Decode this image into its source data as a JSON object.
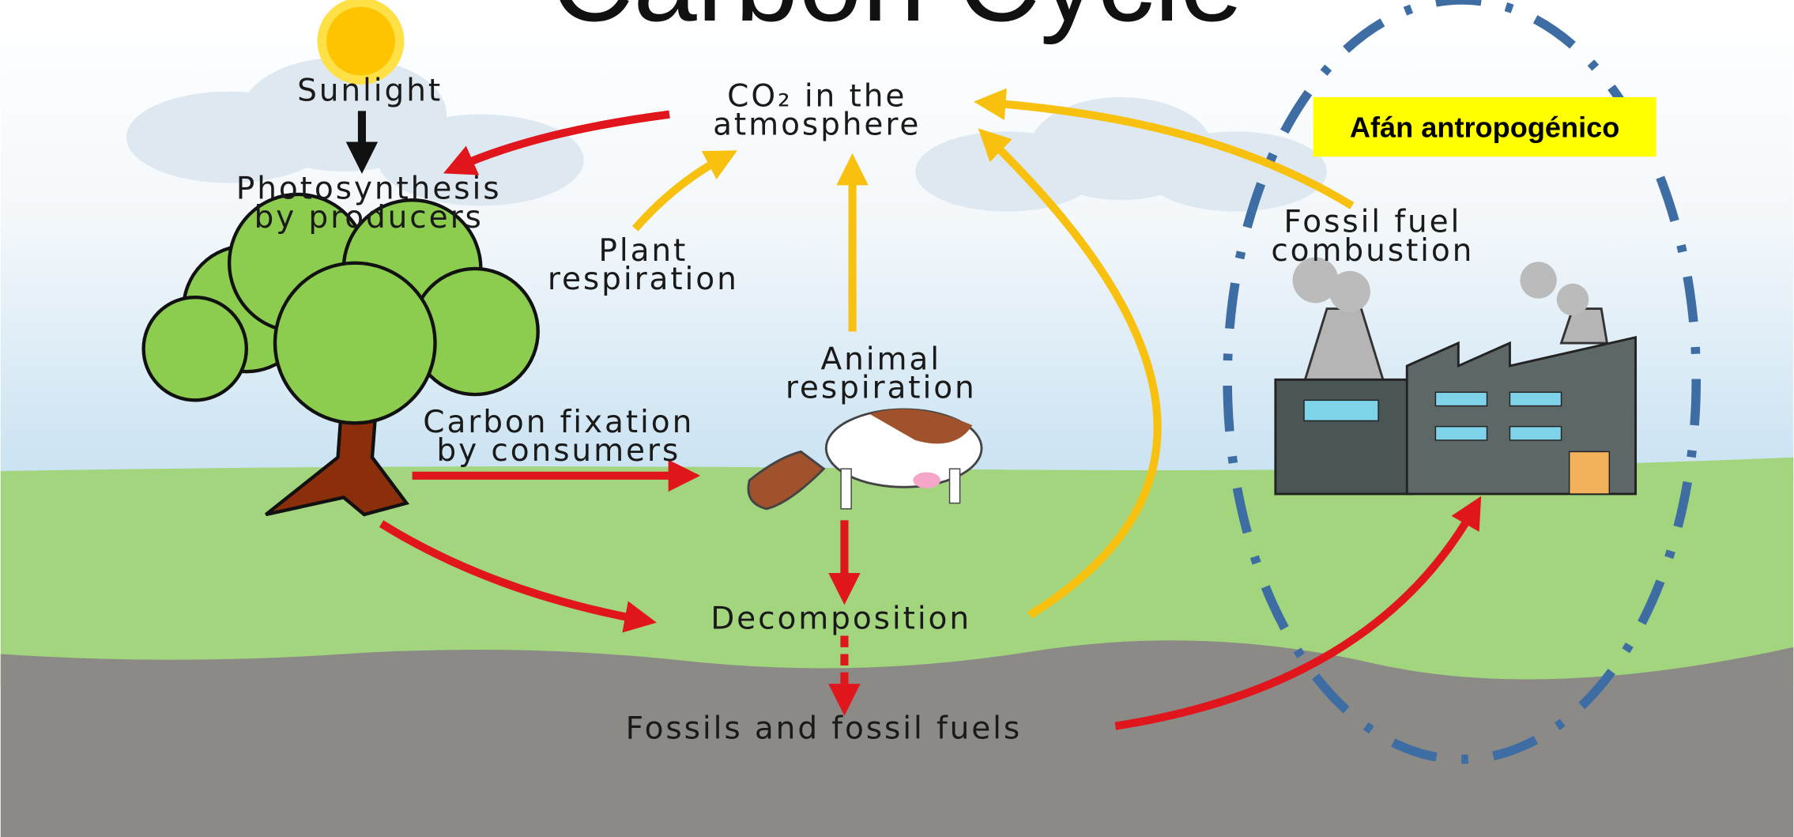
{
  "title": "Carbon Cycle",
  "labels": {
    "sunlight": {
      "lines": [
        "Sunlight"
      ]
    },
    "photosynthesis": {
      "lines": [
        "Photosynthesis",
        "by producers"
      ]
    },
    "atmosphere": {
      "lines": [
        "CO₂ in the",
        "atmosphere"
      ]
    },
    "plant_respiration": {
      "lines": [
        "Plant",
        "respiration"
      ]
    },
    "animal_respiration": {
      "lines": [
        "Animal",
        "respiration"
      ]
    },
    "carbon_fixation": {
      "lines": [
        "Carbon fixation",
        "by consumers"
      ]
    },
    "decomposition": {
      "lines": [
        "Decomposition"
      ]
    },
    "fossils": {
      "lines": [
        "Fossils and fossil fuels"
      ]
    },
    "combustion": {
      "lines": [
        "Fossil fuel",
        "combustion"
      ]
    }
  },
  "callout": "Afán antropogénico"
}
